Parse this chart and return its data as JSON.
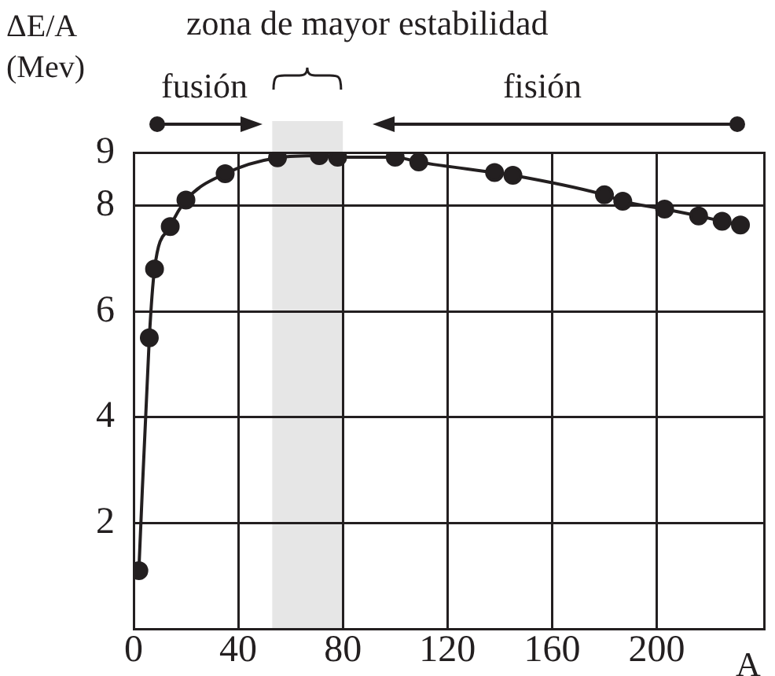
{
  "chart_data": {
    "type": "line",
    "xlabel": "A",
    "ylabel": "ΔE/A (Mev)",
    "x": [
      2,
      6,
      8,
      14,
      20,
      35,
      55,
      71,
      78,
      100,
      109,
      138,
      145,
      180,
      187,
      203,
      216,
      225,
      232
    ],
    "series": [
      {
        "color": "#231f20",
        "values": [
          1.1,
          5.5,
          6.8,
          7.6,
          8.1,
          8.6,
          8.9,
          8.94,
          8.91,
          8.91,
          8.82,
          8.62,
          8.57,
          8.2,
          8.08,
          7.93,
          7.8,
          7.7,
          7.63
        ]
      }
    ],
    "xlim": [
      0,
      241
    ],
    "xticks": [
      0,
      40,
      80,
      120,
      160,
      200
    ],
    "ylim": [
      0,
      9
    ],
    "yticks": [
      2,
      4,
      6,
      8,
      9
    ],
    "bands": [
      {
        "axis": "x",
        "from": 53,
        "to": 80,
        "label": "zona de mayor estabilidad",
        "color": "#e6e6e6"
      }
    ],
    "annotations": [
      "fusión",
      "fisión"
    ],
    "grid": true,
    "legend": false,
    "marker": "circle",
    "line_style": "solid"
  }
}
